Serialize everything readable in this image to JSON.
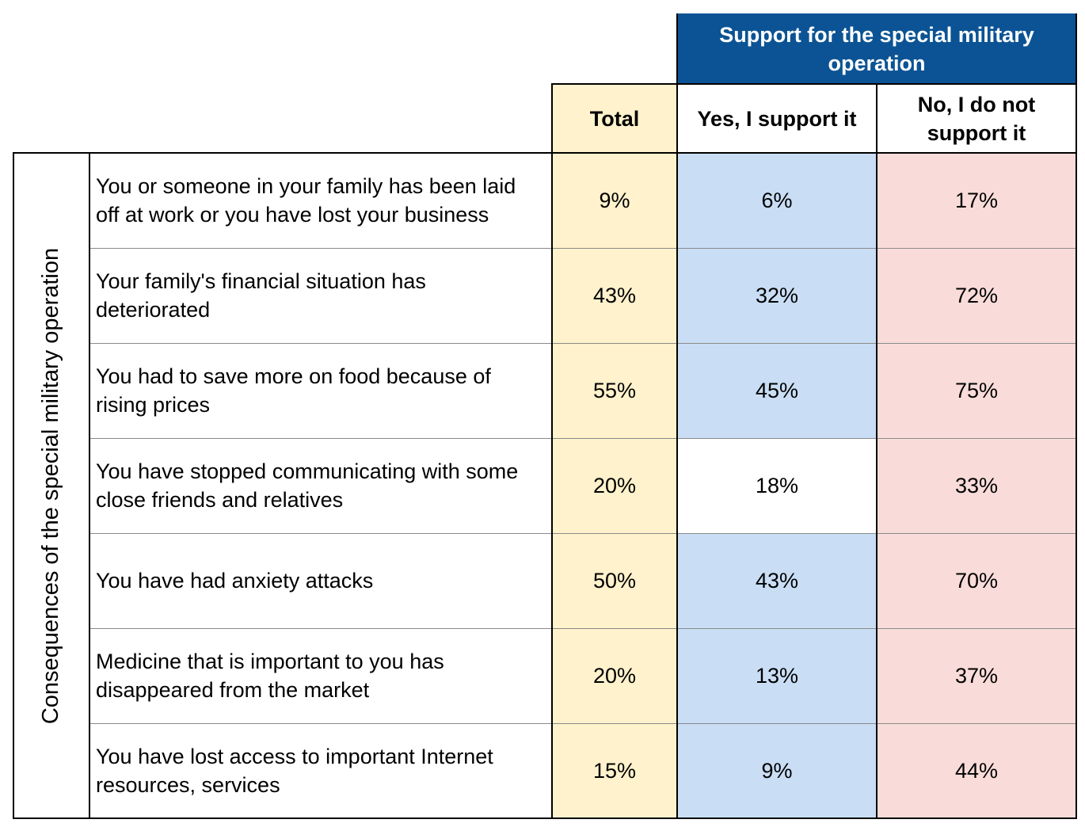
{
  "header": {
    "group_label": "Support for the special military operation",
    "col_total": "Total",
    "col_yes": "Yes, I support it",
    "col_no": "No, I do not support it"
  },
  "side_label": "Consequences of the special military operation",
  "colors": {
    "header_blue": "#0b5394",
    "total_bg": "#fff2cc",
    "yes_bg": "#c9def5",
    "no_bg": "#f9dcd9"
  },
  "rows": [
    {
      "label": "You or someone in your family has been laid off at work or you have lost your business",
      "total": "9%",
      "yes": "6%",
      "no": "17%",
      "yes_highlight": true
    },
    {
      "label": "Your family's financial situation has deteriorated",
      "total": "43%",
      "yes": "32%",
      "no": "72%",
      "yes_highlight": true
    },
    {
      "label": "You had to save more on food because of rising prices",
      "total": "55%",
      "yes": "45%",
      "no": "75%",
      "yes_highlight": true
    },
    {
      "label": "You have stopped communicating with some close friends and relatives",
      "total": "20%",
      "yes": "18%",
      "no": "33%",
      "yes_highlight": false
    },
    {
      "label": "You have had anxiety attacks",
      "total": "50%",
      "yes": "43%",
      "no": "70%",
      "yes_highlight": true
    },
    {
      "label": "Medicine that is important to you has disappeared from the market",
      "total": "20%",
      "yes": "13%",
      "no": "37%",
      "yes_highlight": true
    },
    {
      "label": "You have lost access to important Internet resources, services",
      "total": "15%",
      "yes": "9%",
      "no": "44%",
      "yes_highlight": true
    }
  ]
}
